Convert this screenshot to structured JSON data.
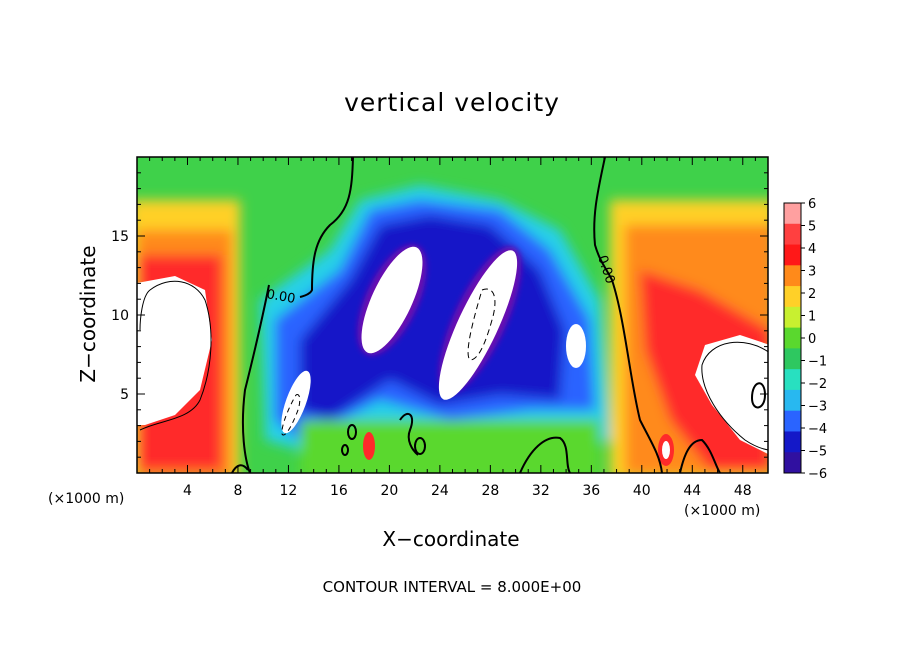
{
  "chart_data": {
    "type": "heatmap",
    "title": "vertical velocity",
    "xlabel": "X−coordinate",
    "ylabel": "Z−coordinate",
    "x_unit_label": "(×1000 m)",
    "z_unit_label": "(×1000 m)",
    "xlim": [
      0,
      50
    ],
    "ylim": [
      0,
      20
    ],
    "x_ticks": [
      "4",
      "8",
      "12",
      "16",
      "20",
      "24",
      "28",
      "32",
      "36",
      "40",
      "44",
      "48"
    ],
    "y_ticks": [
      "5",
      "10",
      "15"
    ],
    "colorbar": {
      "min": -6,
      "max": 6,
      "tick_labels": [
        "6",
        "5",
        "4",
        "3",
        "2",
        "1",
        "0",
        "−1",
        "−2",
        "−3",
        "−4",
        "−5",
        "−6"
      ]
    },
    "contour_labels": [
      "0.00",
      "0.00"
    ],
    "contour_interval_text": "CONTOUR INTERVAL = 8.000E+00",
    "features": [
      {
        "sign": "positive",
        "x": 3,
        "z": 8,
        "value": 8
      },
      {
        "sign": "positive",
        "x": 48,
        "z": 7,
        "value": 8
      },
      {
        "sign": "positive",
        "x": 43,
        "z": 13,
        "value": 4
      },
      {
        "sign": "negative",
        "x": 21,
        "z": 10,
        "value": -8
      },
      {
        "sign": "negative",
        "x": 28,
        "z": 9,
        "value": -8
      },
      {
        "sign": "negative",
        "x": 13,
        "z": 5,
        "value": -7
      },
      {
        "sign": "negative",
        "x": 35,
        "z": 8,
        "value": -6
      },
      {
        "sign": "positive",
        "x": 18,
        "z": 2,
        "value": 4
      },
      {
        "sign": "positive",
        "x": 42,
        "z": 1.5,
        "value": 4
      }
    ],
    "grid": false
  }
}
